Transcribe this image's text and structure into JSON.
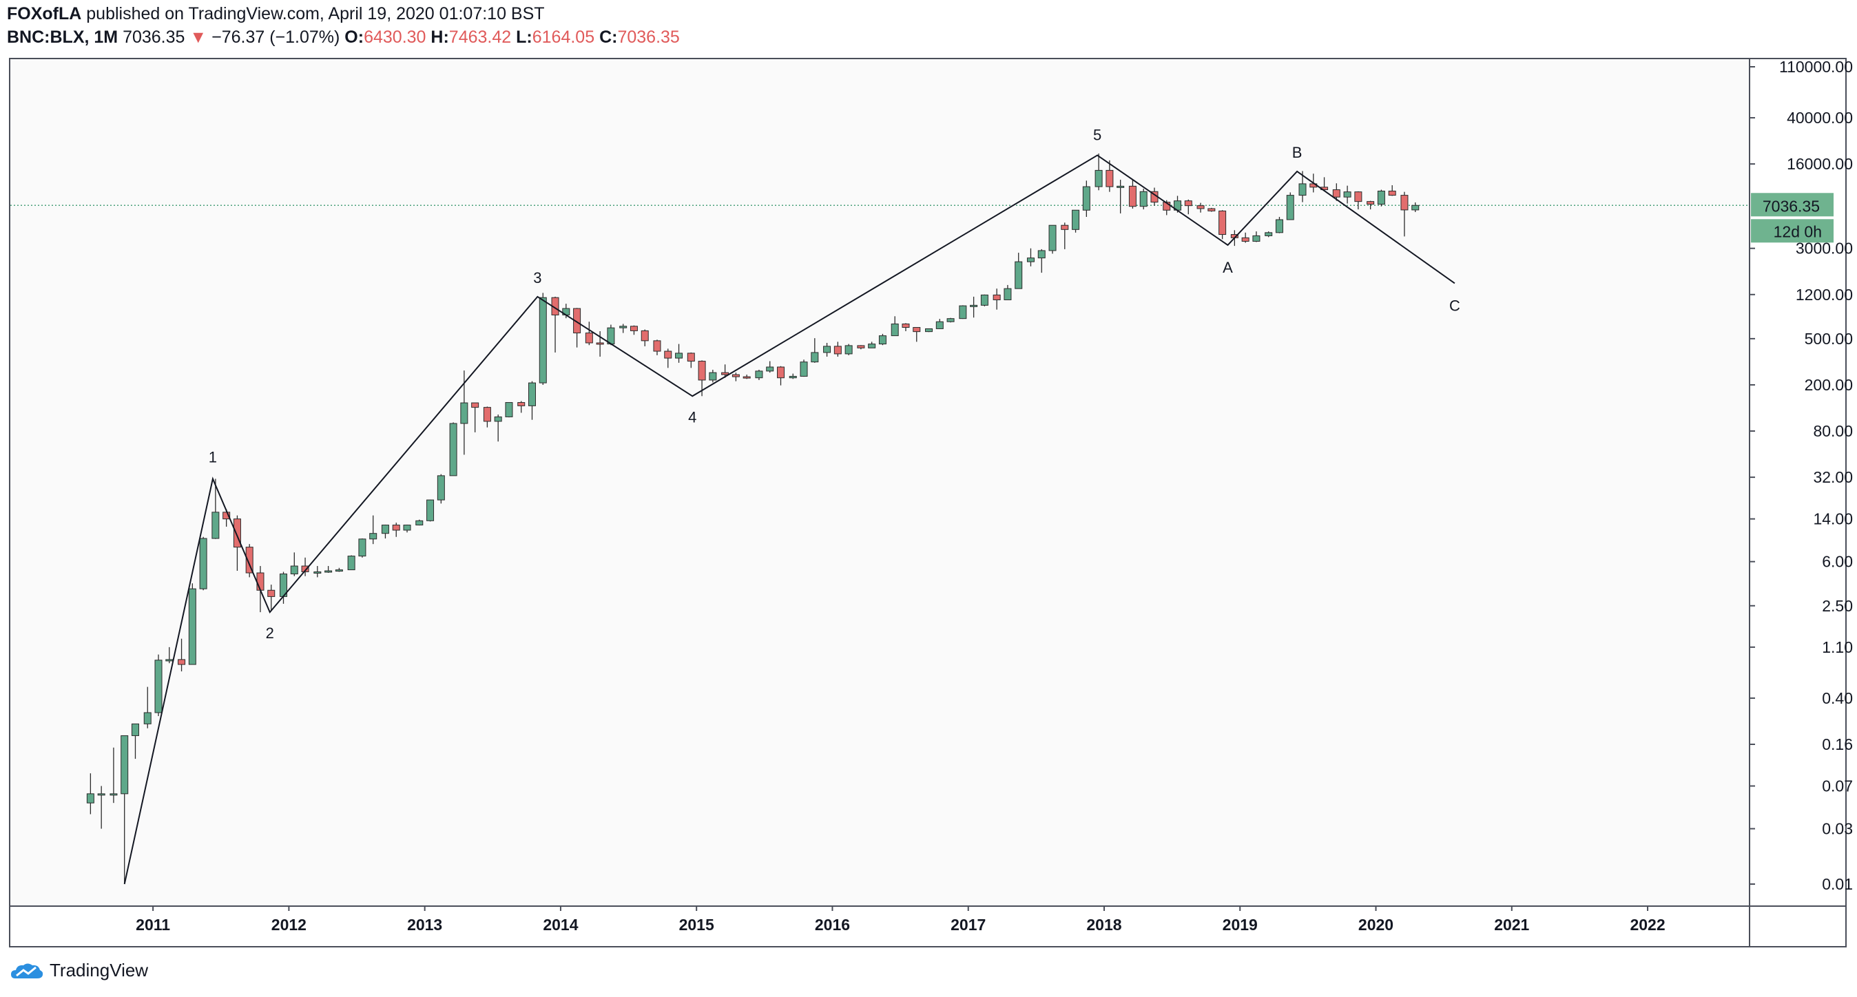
{
  "header": {
    "author": "FOXofLA",
    "published_text": "published on TradingView.com, April 19, 2020 01:07:10 BST",
    "symbol": "BNC:BLX, 1M",
    "last_price": "7036.35",
    "change_arrow": "▼",
    "change_text": "−76.37 (−1.07%)",
    "o_label": "O:",
    "o_value": "6430.30",
    "h_label": "H:",
    "h_value": "7463.42",
    "l_label": "L:",
    "l_value": "6164.05",
    "c_label": "C:",
    "c_value": "7036.35"
  },
  "footer": {
    "brand": "TradingView",
    "icon": "tradingview-cloud-icon"
  },
  "colors": {
    "up": "#5fa88a",
    "down": "#e26d6d",
    "line": "#131722",
    "price_label_bg": "#6fb38f",
    "price_line": "#4aa07a"
  },
  "chart_data": {
    "type": "candlestick",
    "scale": "log",
    "price_axis_labels": [
      "110000.00",
      "40000.00",
      "16000.00",
      "3000.00",
      "1200.00",
      "500.00",
      "200.00",
      "80.00",
      "32.00",
      "14.00",
      "6.00",
      "2.50",
      "1.10",
      "0.40",
      "0.16",
      "0.07",
      "0.03",
      "0.01"
    ],
    "price_axis_values": [
      110000,
      40000,
      16000,
      3000,
      1200,
      500,
      200,
      80,
      32,
      14,
      6,
      2.5,
      1.1,
      0.4,
      0.16,
      0.07,
      0.03,
      0.01
    ],
    "time_axis_labels": [
      "2011",
      "2012",
      "2013",
      "2014",
      "2015",
      "2016",
      "2017",
      "2018",
      "2019",
      "2020",
      "2021",
      "2022"
    ],
    "x_range": [
      2009.95,
      2022.75
    ],
    "current_price": 7036.35,
    "current_price_label": "7036.35",
    "countdown_label": "12d 0h",
    "wave_line": {
      "points": [
        [
          2010.79,
          0.01
        ],
        [
          2011.44,
          31
        ],
        [
          2011.86,
          2.2
        ],
        [
          2013.83,
          1150
        ],
        [
          2014.97,
          160
        ],
        [
          2017.95,
          19000
        ],
        [
          2018.91,
          3200
        ],
        [
          2019.42,
          13800
        ],
        [
          2020.58,
          1500
        ]
      ]
    },
    "wave_labels": [
      {
        "text": "1",
        "x": 2011.44,
        "y": 31
      },
      {
        "text": "2",
        "x": 2011.86,
        "y": 2.2
      },
      {
        "text": "3",
        "x": 2013.83,
        "y": 1150
      },
      {
        "text": "4",
        "x": 2014.97,
        "y": 160
      },
      {
        "text": "5",
        "x": 2017.95,
        "y": 19000
      },
      {
        "text": "A",
        "x": 2018.91,
        "y": 3200
      },
      {
        "text": "B",
        "x": 2019.42,
        "y": 13800
      },
      {
        "text": "C",
        "x": 2020.58,
        "y": 1500
      }
    ],
    "candles": [
      [
        2010.54,
        0.05,
        0.09,
        0.04,
        0.06
      ],
      [
        2010.62,
        0.06,
        0.07,
        0.03,
        0.06
      ],
      [
        2010.71,
        0.06,
        0.15,
        0.05,
        0.06
      ],
      [
        2010.79,
        0.06,
        0.19,
        0.01,
        0.19
      ],
      [
        2010.87,
        0.19,
        0.24,
        0.12,
        0.24
      ],
      [
        2010.96,
        0.24,
        0.5,
        0.22,
        0.3
      ],
      [
        2011.04,
        0.3,
        0.95,
        0.28,
        0.85
      ],
      [
        2011.12,
        0.85,
        1.1,
        0.8,
        0.86
      ],
      [
        2011.21,
        0.86,
        1.3,
        0.68,
        0.78
      ],
      [
        2011.29,
        0.78,
        3.9,
        0.78,
        3.5
      ],
      [
        2011.37,
        3.5,
        9.8,
        3.4,
        9.5
      ],
      [
        2011.46,
        9.5,
        31,
        9.4,
        16
      ],
      [
        2011.54,
        16,
        17,
        12,
        14
      ],
      [
        2011.62,
        14,
        15,
        5,
        8
      ],
      [
        2011.71,
        8,
        8.5,
        4.4,
        4.8
      ],
      [
        2011.79,
        4.8,
        5.5,
        2.2,
        3.4
      ],
      [
        2011.87,
        3.4,
        3.8,
        2.3,
        3
      ],
      [
        2011.96,
        3,
        4.9,
        2.6,
        4.7
      ],
      [
        2012.04,
        4.7,
        7.2,
        4.5,
        5.5
      ],
      [
        2012.12,
        5.5,
        6.5,
        4.5,
        4.9
      ],
      [
        2012.21,
        4.9,
        5.5,
        4.4,
        4.9
      ],
      [
        2012.29,
        4.9,
        5.5,
        4.8,
        5
      ],
      [
        2012.37,
        5,
        5.3,
        4.9,
        5.1
      ],
      [
        2012.46,
        5.1,
        6.8,
        5.1,
        6.7
      ],
      [
        2012.54,
        6.7,
        9.5,
        6.5,
        9.4
      ],
      [
        2012.62,
        9.4,
        15,
        8.5,
        10.5
      ],
      [
        2012.71,
        10.5,
        12.5,
        9.5,
        12.4
      ],
      [
        2012.79,
        12.4,
        13,
        9.8,
        11.2
      ],
      [
        2012.87,
        11.2,
        12.5,
        10.7,
        12.4
      ],
      [
        2012.96,
        12.4,
        13.8,
        12.3,
        13.5
      ],
      [
        2013.04,
        13.5,
        20.5,
        13.3,
        20.4
      ],
      [
        2013.12,
        20.4,
        34,
        19,
        33
      ],
      [
        2013.21,
        33,
        95,
        33,
        93
      ],
      [
        2013.29,
        93,
        266,
        50,
        140
      ],
      [
        2013.37,
        140,
        140,
        78,
        128
      ],
      [
        2013.46,
        128,
        130,
        86,
        97
      ],
      [
        2013.54,
        97,
        111,
        65,
        106
      ],
      [
        2013.62,
        106,
        141,
        105,
        141
      ],
      [
        2013.71,
        141,
        145,
        115,
        132
      ],
      [
        2013.79,
        132,
        215,
        100,
        208
      ],
      [
        2013.87,
        208,
        1240,
        200,
        1130
      ],
      [
        2013.96,
        1130,
        1150,
        380,
        800
      ],
      [
        2014.04,
        800,
        1000,
        750,
        910
      ],
      [
        2014.12,
        910,
        920,
        420,
        560
      ],
      [
        2014.21,
        560,
        700,
        440,
        460
      ],
      [
        2014.29,
        460,
        580,
        350,
        450
      ],
      [
        2014.37,
        450,
        660,
        440,
        620
      ],
      [
        2014.46,
        620,
        670,
        560,
        640
      ],
      [
        2014.54,
        640,
        650,
        540,
        585
      ],
      [
        2014.62,
        585,
        600,
        430,
        480
      ],
      [
        2014.71,
        480,
        490,
        360,
        390
      ],
      [
        2014.79,
        390,
        410,
        280,
        340
      ],
      [
        2014.87,
        340,
        450,
        310,
        375
      ],
      [
        2014.96,
        375,
        380,
        280,
        320
      ],
      [
        2015.04,
        320,
        325,
        160,
        220
      ],
      [
        2015.12,
        220,
        270,
        210,
        255
      ],
      [
        2015.21,
        255,
        300,
        230,
        245
      ],
      [
        2015.29,
        245,
        255,
        215,
        235
      ],
      [
        2015.37,
        235,
        245,
        225,
        230
      ],
      [
        2015.46,
        230,
        270,
        220,
        263
      ],
      [
        2015.54,
        263,
        320,
        255,
        285
      ],
      [
        2015.62,
        285,
        290,
        198,
        230
      ],
      [
        2015.71,
        230,
        250,
        225,
        237
      ],
      [
        2015.79,
        237,
        330,
        235,
        315
      ],
      [
        2015.87,
        315,
        505,
        310,
        380
      ],
      [
        2015.96,
        380,
        460,
        350,
        430
      ],
      [
        2016.04,
        430,
        470,
        350,
        370
      ],
      [
        2016.12,
        370,
        450,
        360,
        436
      ],
      [
        2016.21,
        436,
        440,
        405,
        416
      ],
      [
        2016.29,
        416,
        470,
        415,
        450
      ],
      [
        2016.37,
        450,
        550,
        440,
        530
      ],
      [
        2016.46,
        530,
        780,
        530,
        670
      ],
      [
        2016.54,
        670,
        680,
        580,
        625
      ],
      [
        2016.62,
        625,
        625,
        470,
        575
      ],
      [
        2016.71,
        575,
        610,
        570,
        609
      ],
      [
        2016.79,
        609,
        740,
        605,
        700
      ],
      [
        2016.87,
        700,
        755,
        690,
        745
      ],
      [
        2016.96,
        745,
        970,
        740,
        960
      ],
      [
        2017.04,
        960,
        1150,
        760,
        970
      ],
      [
        2017.12,
        970,
        1200,
        950,
        1190
      ],
      [
        2017.21,
        1190,
        1350,
        890,
        1080
      ],
      [
        2017.29,
        1080,
        1450,
        1080,
        1350
      ],
      [
        2017.37,
        1350,
        2750,
        1350,
        2300
      ],
      [
        2017.46,
        2300,
        3000,
        2100,
        2480
      ],
      [
        2017.54,
        2480,
        2950,
        1850,
        2870
      ],
      [
        2017.62,
        2870,
        4700,
        2700,
        4740
      ],
      [
        2017.71,
        4740,
        5000,
        2950,
        4360
      ],
      [
        2017.79,
        4360,
        6400,
        4100,
        6400
      ],
      [
        2017.87,
        6400,
        11500,
        5600,
        10200
      ],
      [
        2017.96,
        10200,
        19700,
        9500,
        14100
      ],
      [
        2018.04,
        14100,
        17200,
        9200,
        10200
      ],
      [
        2018.12,
        10200,
        11700,
        6000,
        10300
      ],
      [
        2018.21,
        10300,
        11700,
        6600,
        6900
      ],
      [
        2018.29,
        6900,
        9800,
        6500,
        9250
      ],
      [
        2018.37,
        9250,
        10000,
        7000,
        7500
      ],
      [
        2018.46,
        7500,
        7800,
        5800,
        6400
      ],
      [
        2018.54,
        6400,
        8500,
        6100,
        7700
      ],
      [
        2018.62,
        7700,
        7900,
        5900,
        7000
      ],
      [
        2018.71,
        7000,
        7400,
        6100,
        6600
      ],
      [
        2018.79,
        6600,
        6700,
        6200,
        6300
      ],
      [
        2018.87,
        6300,
        6400,
        3600,
        3950
      ],
      [
        2018.96,
        3950,
        4300,
        3150,
        3700
      ],
      [
        2019.04,
        3700,
        4100,
        3350,
        3450
      ],
      [
        2019.12,
        3450,
        4200,
        3400,
        3850
      ],
      [
        2019.21,
        3850,
        4200,
        3750,
        4100
      ],
      [
        2019.29,
        4100,
        5600,
        4050,
        5300
      ],
      [
        2019.37,
        5300,
        9100,
        5300,
        8600
      ],
      [
        2019.46,
        8600,
        13900,
        7500,
        10800
      ],
      [
        2019.54,
        10800,
        13200,
        9100,
        10100
      ],
      [
        2019.62,
        10100,
        12300,
        9400,
        9600
      ],
      [
        2019.71,
        9600,
        10900,
        7700,
        8300
      ],
      [
        2019.79,
        8300,
        10400,
        7300,
        9200
      ],
      [
        2019.87,
        9200,
        9300,
        6500,
        7600
      ],
      [
        2019.96,
        7600,
        7700,
        6500,
        7200
      ],
      [
        2020.04,
        7200,
        9600,
        6900,
        9350
      ],
      [
        2020.12,
        9350,
        10500,
        8500,
        8600
      ],
      [
        2020.21,
        8600,
        9200,
        3800,
        6430
      ],
      [
        2020.29,
        6430,
        7463,
        6164,
        7036
      ]
    ]
  }
}
